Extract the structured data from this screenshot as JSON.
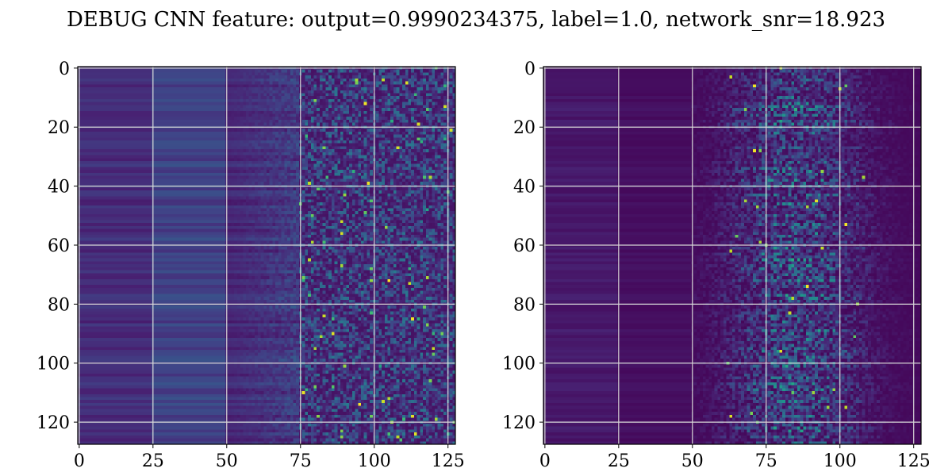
{
  "figure": {
    "title": "DEBUG CNN feature: output=0.9990234375, label=1.0, network_snr=18.923"
  },
  "chart_data": [
    {
      "type": "heatmap",
      "title": "",
      "xlabel": "",
      "ylabel": "",
      "xlim": [
        0,
        127
      ],
      "ylim": [
        127,
        0
      ],
      "xticks": [
        "0",
        "25",
        "50",
        "75",
        "100",
        "125"
      ],
      "yticks": [
        "0",
        "20",
        "40",
        "60",
        "80",
        "100",
        "120"
      ],
      "grid": true,
      "colormap": "viridis",
      "dimensions": [
        128,
        128
      ],
      "colorbar": false
    },
    {
      "type": "heatmap",
      "title": "",
      "xlabel": "",
      "ylabel": "",
      "xlim": [
        0,
        127
      ],
      "ylim": [
        127,
        0
      ],
      "xticks": [
        "0",
        "25",
        "50",
        "75",
        "100",
        "125"
      ],
      "yticks": [
        "0",
        "20",
        "40",
        "60",
        "80",
        "100",
        "120"
      ],
      "grid": true,
      "colormap": "viridis",
      "dimensions": [
        128,
        128
      ],
      "colorbar": false
    }
  ]
}
